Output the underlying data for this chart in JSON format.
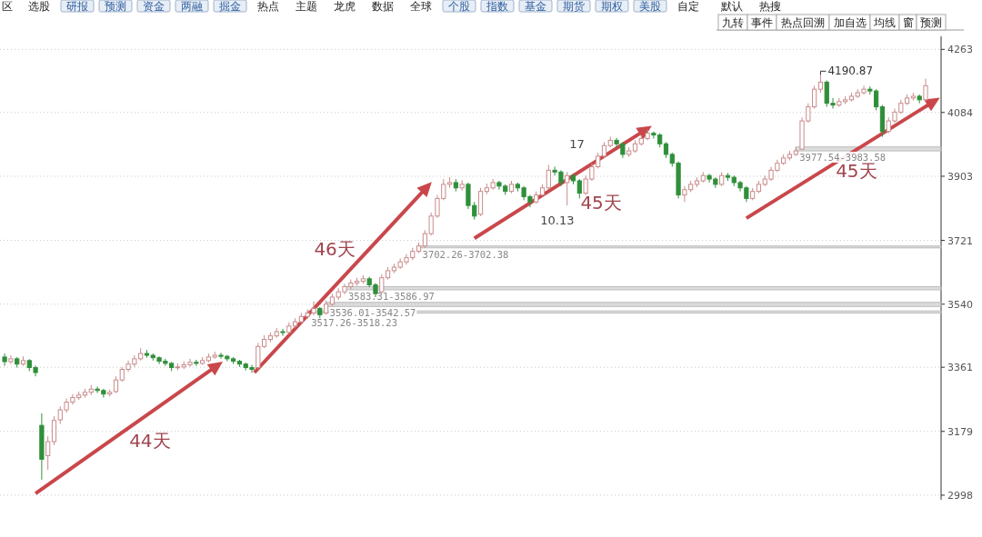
{
  "chart_data": [
    {
      "type": "other",
      "annotations": [
        "区",
        "选股",
        "研报",
        "预测",
        "资金",
        "两融",
        "掘金",
        "热点",
        "主题",
        "龙虎",
        "数据",
        "全球",
        "个股",
        "指数",
        "基金",
        "期货",
        "期权",
        "美股",
        "自定",
        "默认",
        "热搜",
        "九转",
        "事件",
        "热点回溯",
        "加自选",
        "均线",
        "窗",
        "预测"
      ]
    },
    {
      "type": "candlestick",
      "categories": [
        null,
        null,
        null,
        null,
        null,
        null,
        null,
        null,
        null,
        null,
        null,
        null,
        null,
        null,
        null,
        null,
        null,
        null,
        null,
        null,
        null,
        null,
        null,
        null,
        null,
        null,
        null,
        null,
        null,
        null,
        null,
        null,
        null,
        null,
        null,
        null,
        null,
        null,
        null,
        null,
        null,
        null,
        null,
        null,
        null,
        null,
        null,
        null,
        null,
        null,
        null,
        null,
        null,
        null,
        null,
        null,
        null,
        null,
        null,
        null,
        null,
        null,
        null,
        null,
        null,
        null,
        null,
        null,
        null,
        null,
        null,
        null,
        null,
        null,
        null,
        null,
        null,
        null,
        null,
        null,
        null,
        null,
        null,
        null,
        null,
        null,
        null,
        null,
        null,
        null,
        null,
        null,
        null,
        null,
        null,
        null,
        null,
        null,
        null,
        null,
        null,
        null,
        null,
        null,
        null,
        null,
        null,
        null,
        null,
        null,
        null,
        null,
        null,
        null,
        null,
        null,
        null,
        null,
        null,
        null,
        null,
        null,
        null,
        null,
        null,
        null,
        null,
        null,
        null,
        null,
        null,
        null,
        null,
        null,
        null,
        null,
        null,
        null,
        null,
        null,
        null,
        null,
        null,
        null,
        null,
        null,
        null,
        null,
        null,
        null
      ],
      "ohlc": [
        [
          3390,
          3400,
          3365,
          3377
        ],
        [
          3377,
          3395,
          3370,
          3385
        ],
        [
          3385,
          3390,
          3360,
          3370
        ],
        [
          3370,
          3392,
          3365,
          3380
        ],
        [
          3380,
          3384,
          3350,
          3360
        ],
        [
          3360,
          3366,
          3335,
          3346
        ],
        [
          3196,
          3230,
          3042,
          3100
        ],
        [
          3110,
          3165,
          3070,
          3150
        ],
        [
          3150,
          3222,
          3140,
          3210
        ],
        [
          3212,
          3250,
          3200,
          3240
        ],
        [
          3240,
          3272,
          3232,
          3262
        ],
        [
          3262,
          3285,
          3255,
          3275
        ],
        [
          3275,
          3292,
          3268,
          3282
        ],
        [
          3282,
          3300,
          3275,
          3290
        ],
        [
          3290,
          3310,
          3282,
          3299
        ],
        [
          3299,
          3306,
          3288,
          3295
        ],
        [
          3295,
          3300,
          3275,
          3285
        ],
        [
          3285,
          3298,
          3278,
          3290
        ],
        [
          3292,
          3335,
          3288,
          3325
        ],
        [
          3325,
          3362,
          3320,
          3355
        ],
        [
          3355,
          3380,
          3348,
          3370
        ],
        [
          3370,
          3395,
          3362,
          3385
        ],
        [
          3385,
          3415,
          3380,
          3400
        ],
        [
          3400,
          3410,
          3388,
          3395
        ],
        [
          3395,
          3400,
          3380,
          3388
        ],
        [
          3388,
          3392,
          3370,
          3378
        ],
        [
          3378,
          3385,
          3365,
          3372
        ],
        [
          3372,
          3376,
          3350,
          3360
        ],
        [
          3360,
          3372,
          3352,
          3362
        ],
        [
          3362,
          3378,
          3356,
          3368
        ],
        [
          3368,
          3385,
          3362,
          3375
        ],
        [
          3375,
          3382,
          3365,
          3372
        ],
        [
          3372,
          3390,
          3368,
          3380
        ],
        [
          3380,
          3400,
          3375,
          3390
        ],
        [
          3390,
          3405,
          3385,
          3395
        ],
        [
          3395,
          3402,
          3385,
          3392
        ],
        [
          3392,
          3396,
          3378,
          3385
        ],
        [
          3385,
          3390,
          3370,
          3378
        ],
        [
          3378,
          3382,
          3362,
          3370
        ],
        [
          3370,
          3374,
          3352,
          3360
        ],
        [
          3360,
          3368,
          3345,
          3355
        ],
        [
          3360,
          3430,
          3355,
          3420
        ],
        [
          3420,
          3452,
          3415,
          3440
        ],
        [
          3440,
          3460,
          3432,
          3450
        ],
        [
          3450,
          3472,
          3445,
          3462
        ],
        [
          3462,
          3470,
          3450,
          3460
        ],
        [
          3460,
          3488,
          3455,
          3478
        ],
        [
          3478,
          3500,
          3472,
          3490
        ],
        [
          3490,
          3515,
          3485,
          3505
        ],
        [
          3505,
          3525,
          3498,
          3515
        ],
        [
          3515,
          3548,
          3508,
          3528
        ],
        [
          3528,
          3532,
          3500,
          3510
        ],
        [
          3515,
          3550,
          3510,
          3540
        ],
        [
          3540,
          3570,
          3535,
          3560
        ],
        [
          3560,
          3585,
          3552,
          3575
        ],
        [
          3575,
          3598,
          3568,
          3590
        ],
        [
          3590,
          3610,
          3582,
          3600
        ],
        [
          3600,
          3615,
          3592,
          3605
        ],
        [
          3605,
          3622,
          3598,
          3612
        ],
        [
          3612,
          3618,
          3588,
          3595
        ],
        [
          3595,
          3600,
          3560,
          3570
        ],
        [
          3575,
          3625,
          3570,
          3615
        ],
        [
          3615,
          3645,
          3610,
          3635
        ],
        [
          3635,
          3655,
          3628,
          3645
        ],
        [
          3645,
          3670,
          3640,
          3660
        ],
        [
          3660,
          3682,
          3652,
          3672
        ],
        [
          3672,
          3700,
          3665,
          3690
        ],
        [
          3690,
          3715,
          3685,
          3705
        ],
        [
          3705,
          3750,
          3700,
          3740
        ],
        [
          3740,
          3800,
          3735,
          3790
        ],
        [
          3790,
          3850,
          3785,
          3840
        ],
        [
          3840,
          3895,
          3835,
          3880
        ],
        [
          3880,
          3900,
          3870,
          3885
        ],
        [
          3885,
          3895,
          3860,
          3870
        ],
        [
          3870,
          3892,
          3862,
          3880
        ],
        [
          3880,
          3885,
          3810,
          3820
        ],
        [
          3820,
          3830,
          3780,
          3790
        ],
        [
          3795,
          3870,
          3790,
          3860
        ],
        [
          3860,
          3882,
          3852,
          3870
        ],
        [
          3870,
          3895,
          3865,
          3885
        ],
        [
          3885,
          3890,
          3865,
          3875
        ],
        [
          3875,
          3880,
          3850,
          3860
        ],
        [
          3860,
          3890,
          3855,
          3880
        ],
        [
          3880,
          3885,
          3860,
          3870
        ],
        [
          3870,
          3875,
          3835,
          3845
        ],
        [
          3845,
          3850,
          3815,
          3830
        ],
        [
          3830,
          3860,
          3825,
          3850
        ],
        [
          3850,
          3880,
          3845,
          3870
        ],
        [
          3870,
          3935,
          3865,
          3920
        ],
        [
          3920,
          3930,
          3905,
          3915
        ],
        [
          3915,
          3920,
          3875,
          3885
        ],
        [
          3885,
          3915,
          3820,
          3905
        ],
        [
          3905,
          3910,
          3880,
          3890
        ],
        [
          3890,
          3895,
          3840,
          3855
        ],
        [
          3855,
          3905,
          3850,
          3895
        ],
        [
          3895,
          3940,
          3890,
          3930
        ],
        [
          3930,
          3970,
          3925,
          3960
        ],
        [
          3960,
          4000,
          3955,
          3990
        ],
        [
          3990,
          4015,
          3985,
          4005
        ],
        [
          4005,
          4012,
          3985,
          3995
        ],
        [
          3995,
          4000,
          3955,
          3965
        ],
        [
          3965,
          3985,
          3958,
          3975
        ],
        [
          3975,
          4005,
          3970,
          3995
        ],
        [
          3995,
          4020,
          3990,
          4010
        ],
        [
          4010,
          4035,
          4005,
          4025
        ],
        [
          4025,
          4030,
          4010,
          4020
        ],
        [
          4020,
          4025,
          3985,
          3995
        ],
        [
          3995,
          4000,
          3955,
          3965
        ],
        [
          3965,
          3970,
          3930,
          3940
        ],
        [
          3940,
          3945,
          3840,
          3850
        ],
        [
          3850,
          3875,
          3830,
          3865
        ],
        [
          3865,
          3890,
          3858,
          3880
        ],
        [
          3880,
          3900,
          3872,
          3890
        ],
        [
          3890,
          3915,
          3885,
          3905
        ],
        [
          3905,
          3910,
          3885,
          3895
        ],
        [
          3895,
          3900,
          3870,
          3880
        ],
        [
          3880,
          3915,
          3875,
          3905
        ],
        [
          3905,
          3912,
          3890,
          3900
        ],
        [
          3900,
          3905,
          3875,
          3885
        ],
        [
          3885,
          3890,
          3860,
          3870
        ],
        [
          3870,
          3875,
          3830,
          3840
        ],
        [
          3840,
          3870,
          3835,
          3860
        ],
        [
          3860,
          3890,
          3855,
          3880
        ],
        [
          3880,
          3905,
          3875,
          3895
        ],
        [
          3895,
          3930,
          3890,
          3920
        ],
        [
          3920,
          3950,
          3915,
          3940
        ],
        [
          3940,
          3965,
          3935,
          3955
        ],
        [
          3955,
          3975,
          3948,
          3965
        ],
        [
          3965,
          3985,
          3960,
          3975
        ],
        [
          3980,
          4070,
          3978,
          4060
        ],
        [
          4060,
          4110,
          4055,
          4100
        ],
        [
          4100,
          4160,
          4095,
          4150
        ],
        [
          4150,
          4190.87,
          4140,
          4170
        ],
        [
          4170,
          4175,
          4100,
          4110
        ],
        [
          4110,
          4125,
          4095,
          4105
        ],
        [
          4105,
          4125,
          4100,
          4115
        ],
        [
          4115,
          4130,
          4108,
          4120
        ],
        [
          4120,
          4140,
          4115,
          4130
        ],
        [
          4130,
          4150,
          4125,
          4140
        ],
        [
          4140,
          4160,
          4135,
          4150
        ],
        [
          4150,
          4158,
          4135,
          4145
        ],
        [
          4145,
          4150,
          4090,
          4100
        ],
        [
          4100,
          4105,
          4015,
          4030
        ],
        [
          4030,
          4070,
          4025,
          4060
        ],
        [
          4060,
          4095,
          4055,
          4085
        ],
        [
          4085,
          4120,
          4080,
          4110
        ],
        [
          4110,
          4135,
          4105,
          4125
        ],
        [
          4125,
          4140,
          4118,
          4130
        ],
        [
          4130,
          4135,
          4110,
          4120
        ],
        [
          4120,
          4180,
          4115,
          4160
        ]
      ],
      "ylim": [
        2985,
        4300
      ],
      "yticks": [
        2998,
        3179,
        3361,
        3540,
        3721,
        3903,
        4084,
        4263
      ],
      "grid": "y",
      "bands": [
        {
          "axis": "y",
          "from": 3702.26,
          "to": 3702.38,
          "label": "3702.26-3702.38",
          "color": "#bbbbbb"
        },
        {
          "axis": "y",
          "from": 3583.31,
          "to": 3586.97,
          "label": "3583.31-3586.97",
          "color": "#bbbbbb"
        },
        {
          "axis": "y",
          "from": 3536.01,
          "to": 3542.57,
          "label": "3536.01-3542.57",
          "color": "#bbbbbb"
        },
        {
          "axis": "y",
          "from": 3517.26,
          "to": 3518.23,
          "label": "3517.26-3518.23",
          "color": "#bbbbbb"
        },
        {
          "axis": "y",
          "from": 3977.54,
          "to": 3983.58,
          "label": "3977.54-3983.58",
          "color": "#bbbbbb"
        }
      ],
      "annotations": [
        "44天",
        "46天",
        "45天",
        "45天",
        "17",
        "10.13",
        "4190.87"
      ]
    }
  ]
}
